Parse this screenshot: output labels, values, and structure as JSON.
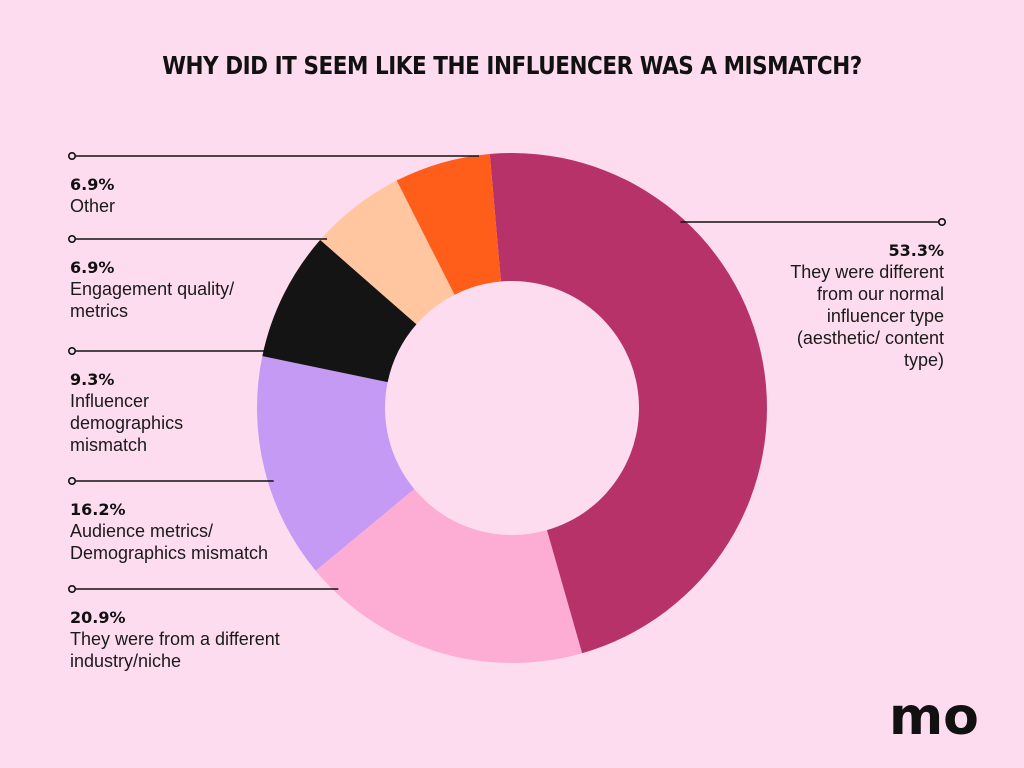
{
  "title": "WHY DID IT SEEM LIKE THE INFLUENCER WAS A MISMATCH?",
  "logo": "mo",
  "chart_data": {
    "type": "pie",
    "title": "WHY DID IT SEEM LIKE THE INFLUENCER WAS A MISMATCH?",
    "unit": "%",
    "legend": "callout-labels",
    "slices": [
      {
        "value": 53.3,
        "value_label": "53.3%",
        "label_lines": [
          "They were different",
          "from our normal",
          "influencer type",
          "(aesthetic/ content",
          "type)"
        ],
        "color": "#b8326a"
      },
      {
        "value": 20.9,
        "value_label": "20.9%",
        "label_lines": [
          "They were from a different",
          "industry/niche"
        ],
        "color": "#fdacd4"
      },
      {
        "value": 16.2,
        "value_label": "16.2%",
        "label_lines": [
          "Audience metrics/",
          "Demographics mismatch"
        ],
        "color": "#c59af5"
      },
      {
        "value": 9.3,
        "value_label": "9.3%",
        "label_lines": [
          "Influencer",
          "demographics",
          "mismatch"
        ],
        "color": "#141414"
      },
      {
        "value": 6.9,
        "value_label": "6.9%",
        "label_lines": [
          "Engagement quality/",
          "metrics"
        ],
        "color": "#ffc6a0"
      },
      {
        "value": 6.9,
        "value_label": "6.9%",
        "label_lines": [
          "Other"
        ],
        "color": "#ff5e1a"
      }
    ]
  }
}
